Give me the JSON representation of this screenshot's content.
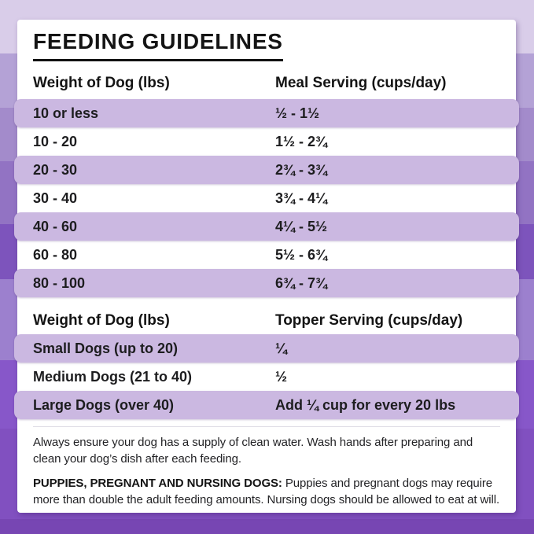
{
  "page": {
    "title": "FEEDING GUIDELINES"
  },
  "meal_table": {
    "col1_header": "Weight of Dog (lbs)",
    "col2_header": "Meal Serving (cups/day)",
    "rows": [
      {
        "weight": "10 or less",
        "serving": "½ - 1½"
      },
      {
        "weight": "10 - 20",
        "serving": "1½ - 2¾"
      },
      {
        "weight": "20 - 30",
        "serving": "2¾ - 3¾"
      },
      {
        "weight": "30 - 40",
        "serving": "3¾ - 4¼"
      },
      {
        "weight": "40 - 60",
        "serving": "4¼ - 5½"
      },
      {
        "weight": "60 - 80",
        "serving": "5½ - 6¾"
      },
      {
        "weight": "80 - 100",
        "serving": "6¾ - 7¾"
      }
    ]
  },
  "topper_table": {
    "col1_header": "Weight of Dog (lbs)",
    "col2_header": "Topper Serving (cups/day)",
    "rows": [
      {
        "weight": "Small Dogs (up to 20)",
        "serving": "¼"
      },
      {
        "weight": "Medium Dogs (21 to 40)",
        "serving": "½"
      },
      {
        "weight": "Large Dogs (over 40)",
        "serving": "Add ¼ cup for every 20 lbs"
      }
    ]
  },
  "notes": {
    "water_note": "Always ensure your dog has a supply of clean water. Wash hands after preparing and clean your dog’s dish after each feeding.",
    "puppies_label": "PUPPIES, PREGNANT AND NURSING DOGS:",
    "puppies_note": " Puppies and pregnant dogs may require more than double the adult feeding amounts. Nursing dogs should be allowed to eat at will."
  },
  "colors": {
    "card_background": "#ffffff",
    "text_primary": "#1d1d1f",
    "title_underline": "#111111",
    "row_highlight": "#cbb8e1",
    "background_bands": [
      "#d9cde9",
      "#b4a2d6",
      "#a38bcb",
      "#9273c3",
      "#7d54bc",
      "#9c80ce",
      "#8757c9",
      "#8150c0",
      "#7746b3"
    ]
  }
}
